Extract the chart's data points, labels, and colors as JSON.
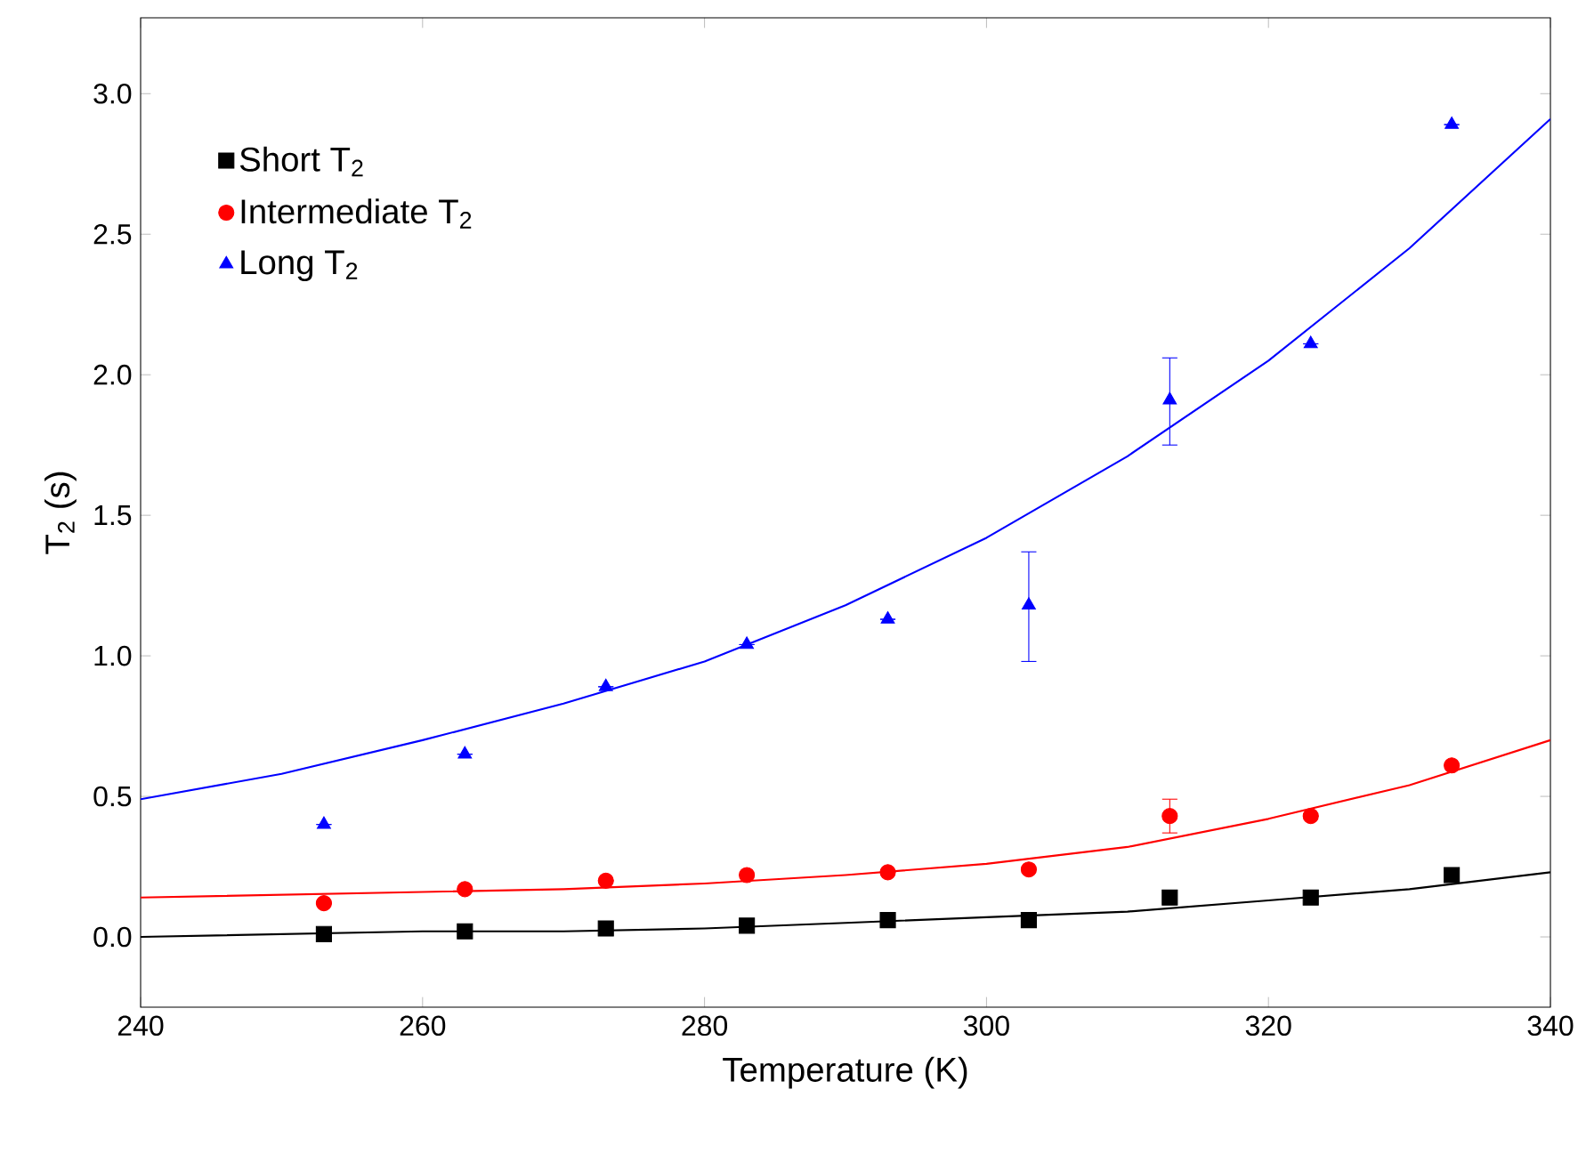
{
  "chart_data": {
    "type": "scatter",
    "xlabel": "Temperature (K)",
    "ylabel": "T$_{2}$ (s)",
    "xlim": [
      240,
      340
    ],
    "xticks": [
      240,
      260,
      280,
      300,
      320,
      340
    ],
    "ylim": [
      -0.25,
      3.27
    ],
    "yticks": [
      {
        "value": 0,
        "label": "0.0"
      },
      {
        "value": 0.5,
        "label": "0.5"
      },
      {
        "value": 1,
        "label": "1.0"
      },
      {
        "value": 1.5,
        "label": "1.5"
      },
      {
        "value": 2,
        "label": "2.0"
      },
      {
        "value": 2.5,
        "label": "2.5"
      },
      {
        "value": 3,
        "label": "3.0"
      }
    ],
    "legend": "top left",
    "grid": false,
    "series": [
      {
        "name": "Short T$_{2}$",
        "color": "#000000",
        "marker": "square",
        "x": [
          253,
          263,
          273,
          283,
          293,
          303,
          313,
          323,
          333
        ],
        "values": [
          0.01,
          0.02,
          0.03,
          0.04,
          0.06,
          0.06,
          0.14,
          0.14,
          0.22
        ]
      },
      {
        "name": "Intermediate T$_{2}$",
        "color": "#ff0000",
        "marker": "circle",
        "x": [
          253,
          263,
          273,
          283,
          293,
          303,
          313,
          323,
          333
        ],
        "values": [
          0.12,
          0.17,
          0.2,
          0.22,
          0.23,
          0.24,
          0.43,
          0.43,
          0.61
        ],
        "errors": [
          null,
          null,
          null,
          null,
          null,
          null,
          [
            0.37,
            0.49
          ],
          null,
          null
        ]
      },
      {
        "name": "Long T$_{2}$",
        "color": "#0000ff",
        "marker": "triangle",
        "x": [
          253,
          263,
          273,
          283,
          293,
          303,
          313,
          323,
          333
        ],
        "values": [
          0.4,
          0.65,
          0.89,
          1.04,
          1.13,
          1.18,
          1.91,
          2.11,
          2.89
        ],
        "errors": [
          null,
          null,
          null,
          null,
          null,
          [
            0.98,
            1.37
          ],
          [
            1.75,
            2.06
          ],
          null,
          null
        ]
      },
      {
        "type": "line",
        "color": "#000000",
        "marker": "none",
        "x": [
          240,
          250,
          260,
          270,
          280,
          290,
          300,
          310,
          320,
          330,
          340
        ],
        "values": [
          0.0,
          0.01,
          0.02,
          0.02,
          0.03,
          0.05,
          0.07,
          0.09,
          0.13,
          0.17,
          0.23
        ]
      },
      {
        "type": "line",
        "color": "#ff0000",
        "marker": "none",
        "x": [
          240,
          250,
          260,
          270,
          280,
          290,
          300,
          310,
          320,
          330,
          340
        ],
        "values": [
          0.14,
          0.15,
          0.16,
          0.17,
          0.19,
          0.22,
          0.26,
          0.32,
          0.42,
          0.54,
          0.7
        ]
      },
      {
        "type": "line",
        "color": "#0000ff",
        "marker": "none",
        "x": [
          240,
          250,
          260,
          270,
          280,
          290,
          300,
          310,
          320,
          330,
          340
        ],
        "values": [
          0.49,
          0.58,
          0.7,
          0.83,
          0.98,
          1.18,
          1.42,
          1.71,
          2.05,
          2.45,
          2.91
        ]
      }
    ]
  }
}
